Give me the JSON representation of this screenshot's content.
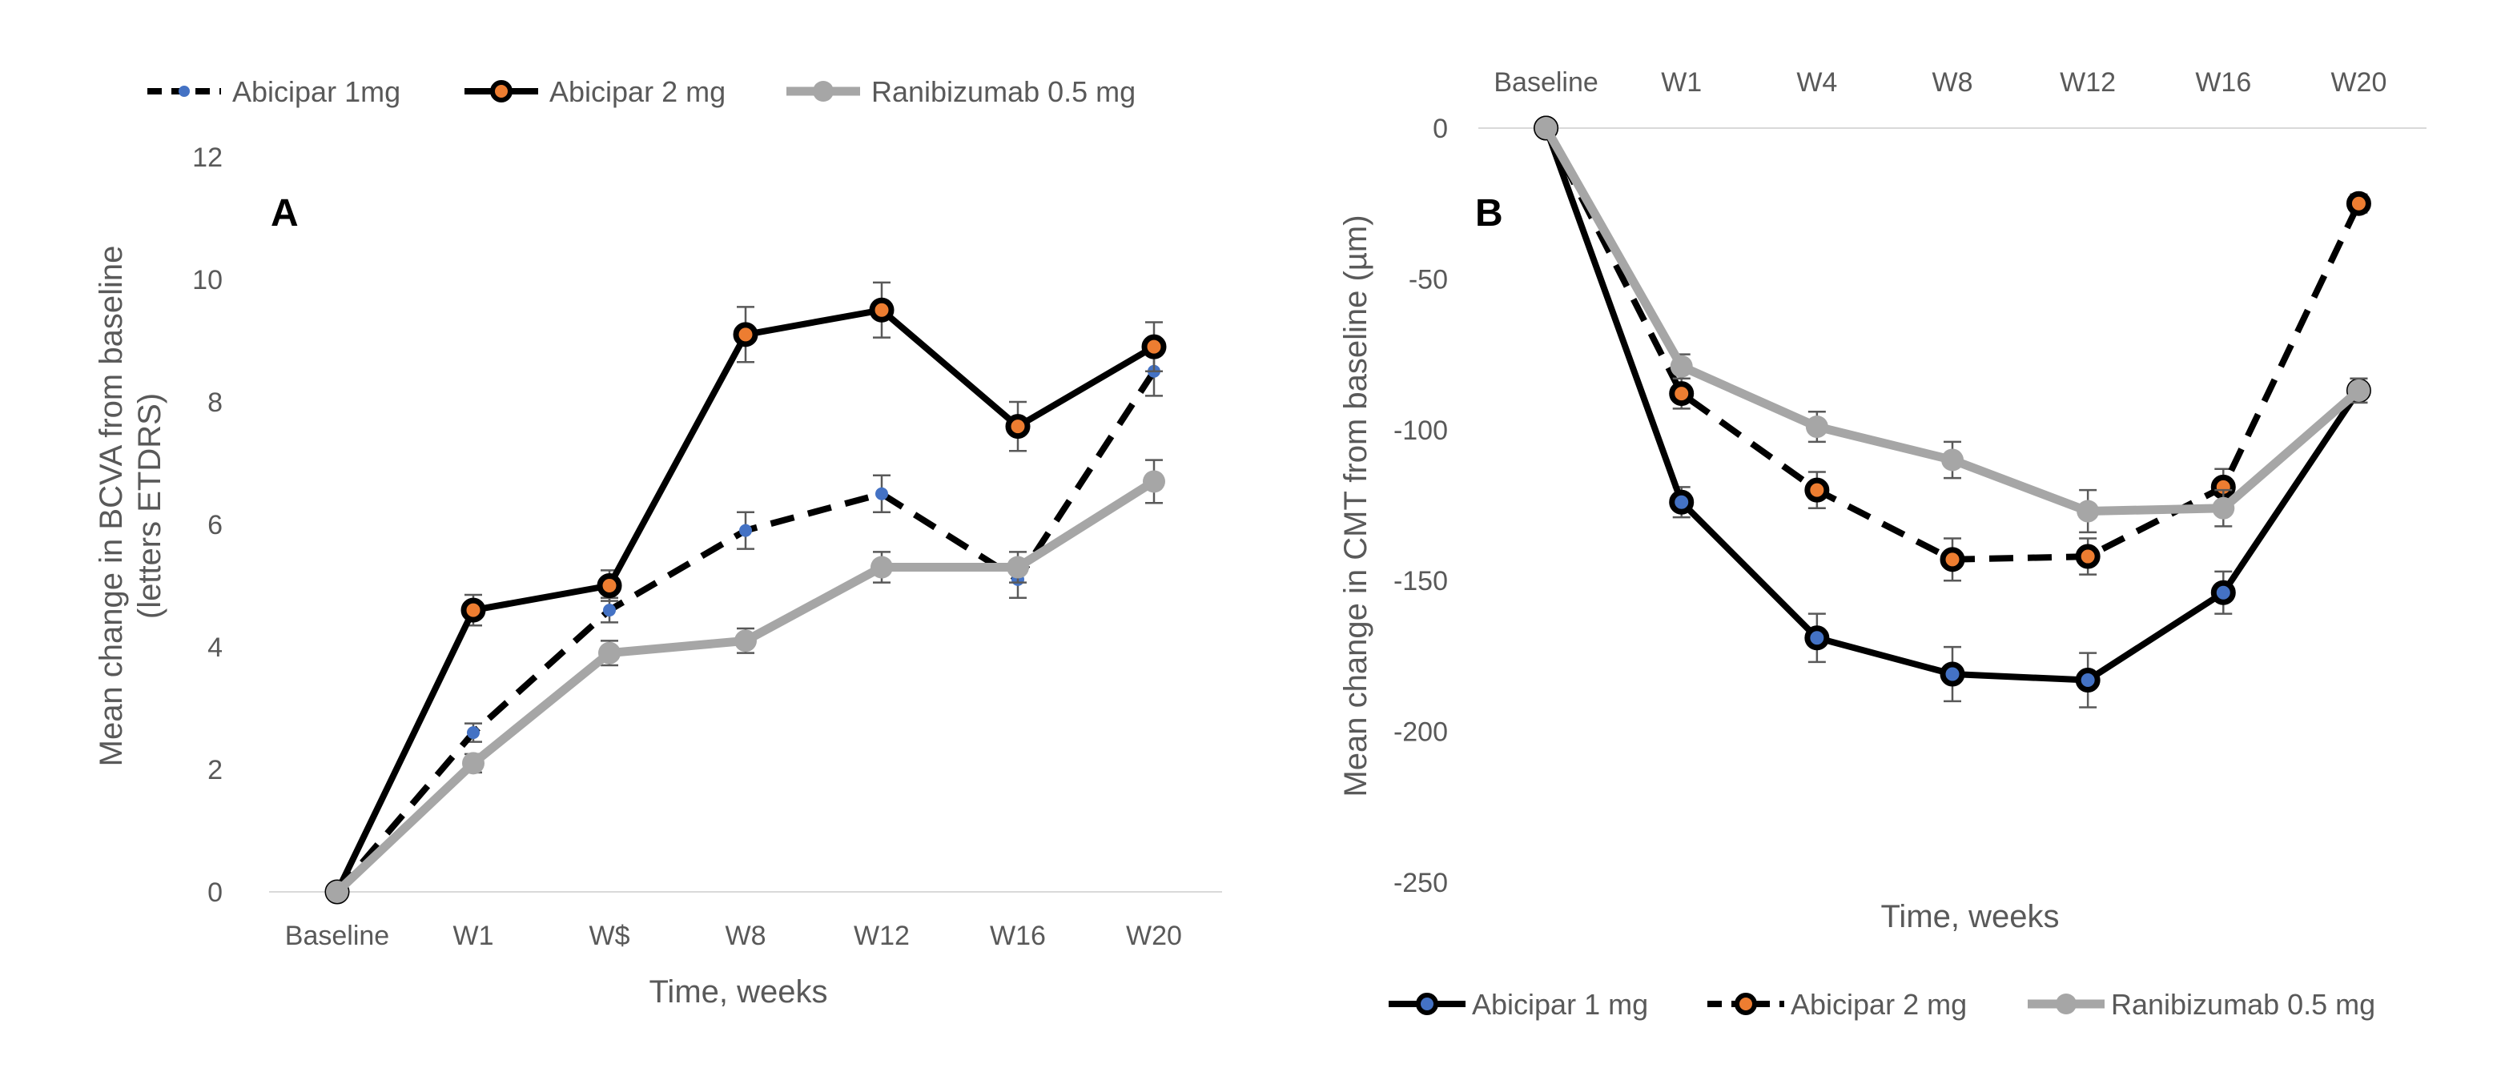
{
  "chart_data": [
    {
      "panel": "A",
      "type": "line",
      "categories": [
        "Baseline",
        "W1",
        "W$",
        "W8",
        "W12",
        "W16",
        "W20"
      ],
      "xlabel": "Time, weeks",
      "ylabel_line1": "Mean change in BCVA from baseline",
      "ylabel_line2": "(letters ETDRS)",
      "ylim": [
        0,
        12
      ],
      "yticks": [
        0,
        2,
        4,
        6,
        8,
        10,
        12
      ],
      "series": [
        {
          "name": "Abicipar 1mg",
          "values": [
            0,
            2.6,
            4.6,
            5.9,
            6.5,
            5.1,
            8.5
          ],
          "errors": [
            0,
            0.15,
            0.2,
            0.3,
            0.3,
            0.3,
            0.4
          ],
          "color": "#000000",
          "dash": "dashed",
          "marker_color": "#4472c4"
        },
        {
          "name": "Abicipar 2 mg",
          "values": [
            0,
            4.6,
            5.0,
            9.1,
            9.5,
            7.6,
            8.9
          ],
          "errors": [
            0,
            0.25,
            0.25,
            0.45,
            0.45,
            0.4,
            0.4
          ],
          "color": "#000000",
          "dash": "solid",
          "marker_color": "#ed7d31"
        },
        {
          "name": "Ranibizumab 0.5 mg",
          "values": [
            0,
            2.1,
            3.9,
            4.1,
            5.3,
            5.3,
            6.7
          ],
          "errors": [
            0,
            0.15,
            0.2,
            0.2,
            0.25,
            0.25,
            0.35
          ],
          "color": "#a6a6a6",
          "dash": "solid",
          "marker_color": "#a6a6a6"
        }
      ]
    },
    {
      "panel": "B",
      "type": "line",
      "categories": [
        "Baseline",
        "W1",
        "W4",
        "W8",
        "W12",
        "W16",
        "W20"
      ],
      "xlabel": "Time, weeks",
      "ylabel": "Mean change in CMT from baseline (µm)",
      "ylim": [
        -250,
        0
      ],
      "yticks": [
        0,
        -50,
        -100,
        -150,
        -200,
        -250
      ],
      "series": [
        {
          "name": "Abicipar 1 mg",
          "values": [
            0,
            -124,
            -169,
            -181,
            -183,
            -154,
            -87
          ],
          "errors": [
            0,
            5,
            8,
            9,
            9,
            7,
            4
          ],
          "color": "#000000",
          "dash": "solid",
          "marker_color": "#4472c4"
        },
        {
          "name": "Abicipar 2 mg",
          "values": [
            0,
            -88,
            -120,
            -143,
            -142,
            -119,
            -25
          ],
          "errors": [
            0,
            5,
            6,
            7,
            6,
            6,
            3
          ],
          "color": "#000000",
          "dash": "dashed",
          "marker_color": "#ed7d31"
        },
        {
          "name": "Ranibizumab 0.5 mg",
          "values": [
            0,
            -79,
            -99,
            -110,
            -127,
            -126,
            -87
          ],
          "errors": [
            0,
            4,
            5,
            6,
            7,
            6,
            4
          ],
          "color": "#a6a6a6",
          "dash": "solid",
          "marker_color": "#a6a6a6"
        }
      ]
    }
  ]
}
